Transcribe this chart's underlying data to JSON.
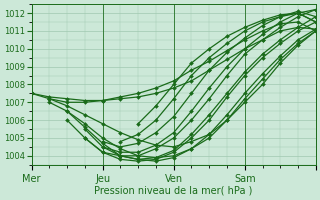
{
  "title": "",
  "xlabel": "Pression niveau de la mer( hPa )",
  "ylabel": "",
  "background_color": "#cce8d8",
  "plot_bg_color": "#cce8d8",
  "line_color": "#1a6b1a",
  "grid_color": "#a0c8b0",
  "ylim": [
    1003.5,
    1012.5
  ],
  "xlim": [
    0,
    96
  ],
  "yticks": [
    1004,
    1005,
    1006,
    1007,
    1008,
    1009,
    1010,
    1011,
    1012
  ],
  "day_ticks": [
    0,
    24,
    48,
    72,
    96
  ],
  "day_labels": [
    "Mer",
    "Jeu",
    "Ven",
    "Sam",
    ""
  ],
  "series": [
    {
      "x": [
        0,
        6,
        12,
        18,
        24,
        30,
        36,
        42,
        48,
        54,
        60,
        66,
        72,
        78,
        84,
        90,
        96
      ],
      "y": [
        1007.5,
        1007.3,
        1007.2,
        1007.1,
        1007.1,
        1007.2,
        1007.3,
        1007.5,
        1007.8,
        1008.2,
        1008.8,
        1009.4,
        1010.0,
        1010.5,
        1011.0,
        1011.2,
        1011.1
      ]
    },
    {
      "x": [
        0,
        6,
        12,
        18,
        24,
        30,
        36,
        42,
        48,
        54,
        60,
        66,
        72,
        78,
        84,
        90,
        96
      ],
      "y": [
        1007.5,
        1007.2,
        1007.0,
        1007.0,
        1007.1,
        1007.3,
        1007.5,
        1007.8,
        1008.2,
        1008.8,
        1009.3,
        1009.9,
        1010.5,
        1011.0,
        1011.4,
        1011.5,
        1011.0
      ]
    },
    {
      "x": [
        6,
        12,
        18,
        24,
        30,
        36,
        42,
        48,
        54,
        60,
        66,
        72,
        78,
        84,
        90,
        96
      ],
      "y": [
        1007.2,
        1006.8,
        1006.3,
        1005.8,
        1005.3,
        1004.9,
        1004.6,
        1004.5,
        1004.8,
        1005.2,
        1006.0,
        1007.0,
        1008.0,
        1009.2,
        1010.2,
        1011.0
      ]
    },
    {
      "x": [
        6,
        12,
        18,
        24,
        30,
        36,
        42,
        48,
        54,
        60,
        66,
        72,
        78,
        84,
        90,
        96
      ],
      "y": [
        1007.0,
        1006.5,
        1005.8,
        1005.0,
        1004.4,
        1004.0,
        1003.9,
        1004.0,
        1004.4,
        1005.0,
        1006.0,
        1007.2,
        1008.3,
        1009.4,
        1010.3,
        1011.0
      ]
    },
    {
      "x": [
        12,
        18,
        24,
        30,
        36,
        42,
        48,
        54,
        60,
        66,
        72,
        78,
        84,
        90,
        96
      ],
      "y": [
        1006.5,
        1005.6,
        1004.7,
        1004.0,
        1003.8,
        1003.7,
        1003.9,
        1004.4,
        1005.2,
        1006.3,
        1007.5,
        1008.6,
        1009.6,
        1010.5,
        1011.1
      ]
    },
    {
      "x": [
        12,
        18,
        24,
        30,
        36,
        42,
        48,
        54,
        60,
        66,
        72,
        78,
        84,
        90,
        96
      ],
      "y": [
        1006.0,
        1005.0,
        1004.2,
        1003.8,
        1003.7,
        1003.8,
        1004.2,
        1005.0,
        1006.0,
        1007.3,
        1008.5,
        1009.5,
        1010.3,
        1011.0,
        1011.5
      ]
    },
    {
      "x": [
        18,
        24,
        30,
        36,
        42,
        48,
        54,
        60,
        66,
        72,
        78,
        84,
        90,
        96
      ],
      "y": [
        1005.5,
        1004.5,
        1004.0,
        1003.8,
        1003.9,
        1004.3,
        1005.2,
        1006.3,
        1007.5,
        1008.7,
        1009.7,
        1010.5,
        1011.2,
        1011.8
      ]
    },
    {
      "x": [
        18,
        24,
        30,
        36,
        42,
        48,
        54,
        60,
        66,
        72,
        78,
        84,
        90,
        96
      ],
      "y": [
        1005.0,
        1004.2,
        1004.0,
        1004.0,
        1004.4,
        1005.0,
        1006.0,
        1007.2,
        1008.5,
        1009.7,
        1010.5,
        1011.2,
        1011.8,
        1012.2
      ]
    },
    {
      "x": [
        24,
        30,
        36,
        42,
        48,
        54,
        60,
        66,
        72,
        78,
        84,
        90,
        96
      ],
      "y": [
        1004.5,
        1004.2,
        1004.2,
        1004.6,
        1005.3,
        1006.5,
        1007.8,
        1009.0,
        1010.0,
        1010.8,
        1011.5,
        1012.0,
        1012.2
      ]
    },
    {
      "x": [
        24,
        30,
        36,
        42,
        48,
        54,
        60,
        66,
        72,
        78,
        84,
        90,
        96
      ],
      "y": [
        1004.8,
        1004.5,
        1004.7,
        1005.3,
        1006.2,
        1007.5,
        1008.8,
        1009.8,
        1010.6,
        1011.3,
        1011.8,
        1012.1,
        1011.8
      ]
    },
    {
      "x": [
        30,
        36,
        42,
        48,
        54,
        60,
        66,
        72,
        78,
        84,
        90,
        96
      ],
      "y": [
        1004.8,
        1005.2,
        1006.0,
        1007.2,
        1008.5,
        1009.5,
        1010.3,
        1011.0,
        1011.5,
        1011.8,
        1012.0,
        1011.5
      ]
    },
    {
      "x": [
        36,
        42,
        48,
        54,
        60,
        66,
        72,
        78,
        84,
        90,
        96
      ],
      "y": [
        1005.8,
        1006.8,
        1008.0,
        1009.2,
        1010.0,
        1010.7,
        1011.2,
        1011.6,
        1011.9,
        1012.0,
        1011.5
      ]
    }
  ],
  "marker": "D",
  "marker_size": 2.0,
  "linewidth": 0.9
}
